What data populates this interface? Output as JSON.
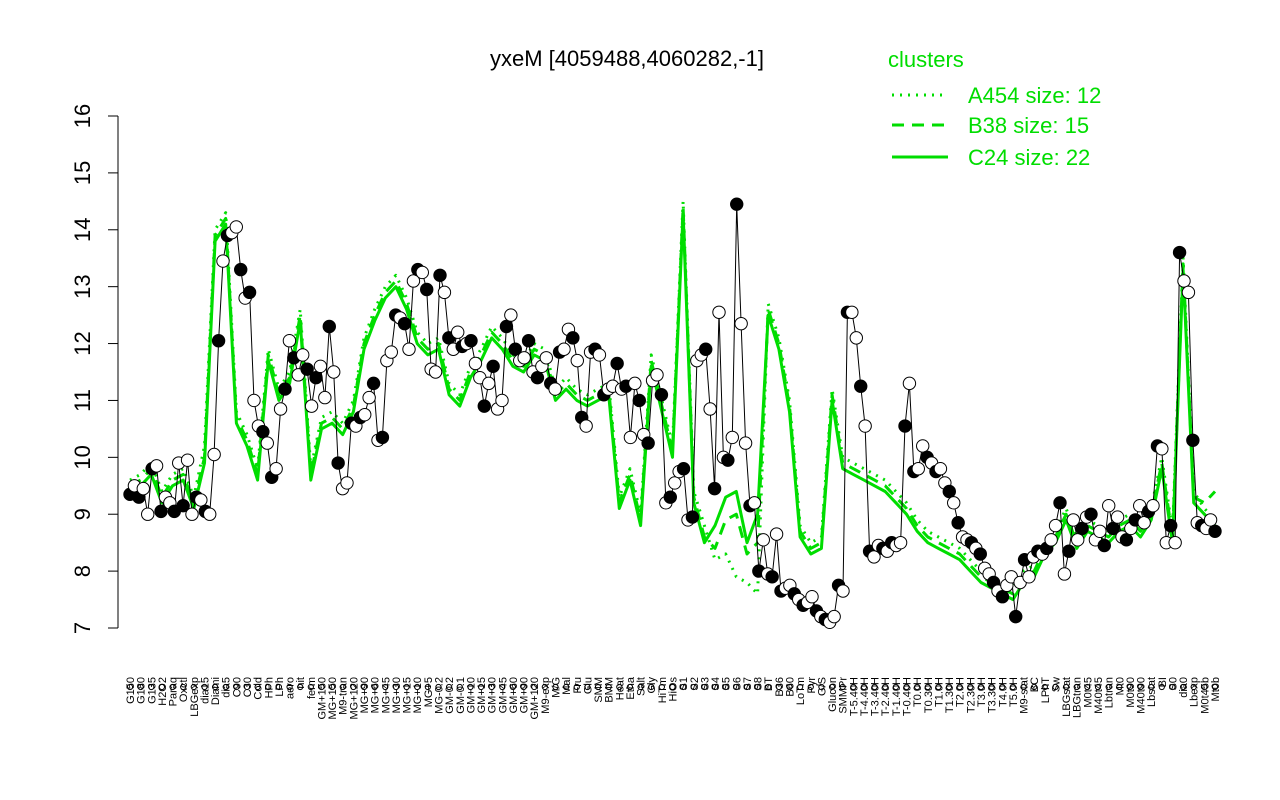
{
  "chart_data": {
    "type": "line",
    "title": "yxeM [4059488,4060282,-1]",
    "xlabel": "",
    "ylabel": "",
    "ylim": [
      7,
      16
    ],
    "yticks": [
      7,
      8,
      9,
      10,
      11,
      12,
      13,
      14,
      15,
      16
    ],
    "x_tick_labels": [
      "G150",
      "G180",
      "G135",
      "H2O2",
      "Paraq",
      "Oxctl",
      "LBGexp",
      "dia15",
      "Diami",
      "dia5",
      "C90",
      "C30",
      "Cold",
      "HPh",
      "LPh",
      "aero",
      "nit",
      "ferm",
      "GM+150",
      "MG+150",
      "M9-tran",
      "MG+120",
      "MG+90",
      "MG+60",
      "MG+45",
      "MG+30",
      "MG+15",
      "MG+10",
      "MG+5",
      "MG-0.2",
      "GM-0.2",
      "GM-0.1",
      "GM+10",
      "GM+15",
      "GM+30",
      "GM+45",
      "GM+60",
      "GM+90",
      "GM+120",
      "M9-exp",
      "M/G",
      "Mal",
      "Fru",
      "Glu",
      "SMM",
      "BMM",
      "Heat",
      "Etha",
      "Salt",
      "Gly",
      "HiTm",
      "HiOs",
      "S1",
      "S2",
      "S3",
      "S4",
      "S5",
      "S6",
      "S7",
      "S8",
      "BT",
      "B36",
      "B60",
      "LoTm",
      "Pyr",
      "G/S",
      "Glucon",
      "SMMPr",
      "T-5.40H",
      "T-4.40H",
      "T-3.40H",
      "T-2.40H",
      "T-1.40H",
      "T-0.40H",
      "T0.0H",
      "T0.30H",
      "T1.0H",
      "T1.30H",
      "T2.0H",
      "T2.30H",
      "T3.0H",
      "T3.30H",
      "T4.0H",
      "T5.0H",
      "M9-stat",
      "BC",
      "LPhT",
      "Sw",
      "LBGstat",
      "LBGtran",
      "M0t45",
      "M40t45",
      "Lbtran",
      "Mt0",
      "M0t90",
      "M40t90",
      "Lbstat",
      "BI",
      "S0",
      "dia0",
      "Lbexp",
      "M0t45b",
      "Mt0b"
    ],
    "series": [
      {
        "name": "A454 size: 12",
        "style": "dotted",
        "color": "#00dd00",
        "values": [
          9.6,
          9.7,
          9.9,
          9.4,
          9.7,
          9.8,
          9.3,
          10.2,
          14.0,
          14.3,
          10.8,
          10.4,
          9.8,
          11.9,
          11.2,
          11.5,
          12.6,
          9.8,
          10.7,
          10.8,
          10.6,
          11.0,
          12.1,
          12.6,
          13.0,
          13.2,
          12.8,
          12.2,
          12.0,
          12.1,
          11.3,
          11.1,
          11.6,
          11.9,
          12.3,
          12.1,
          11.8,
          11.7,
          12.0,
          11.9,
          11.2,
          11.4,
          11.2,
          11.1,
          11.2,
          11.3,
          9.3,
          9.8,
          9.0,
          11.8,
          11.0,
          10.2,
          14.5,
          9.4,
          8.8,
          8.2,
          8.3,
          7.9,
          7.8,
          7.6,
          12.7,
          12.1,
          11.0,
          8.8,
          8.5,
          8.6,
          11.2,
          10.0,
          9.9,
          9.8,
          9.7,
          9.6,
          9.4,
          9.2,
          8.9,
          8.7,
          8.6,
          8.5,
          8.4,
          8.2,
          8.0,
          7.9,
          7.8,
          7.7,
          8.0,
          8.1,
          8.5,
          8.7,
          9.1,
          8.6,
          8.9,
          8.8,
          8.7,
          8.9,
          9.0,
          8.8,
          9.1,
          10.0,
          8.7,
          13.5,
          9.4,
          9.1,
          8.9
        ]
      },
      {
        "name": "B38 size: 15",
        "style": "dashed",
        "color": "#00dd00",
        "values": [
          9.5,
          9.6,
          9.8,
          9.3,
          9.6,
          9.7,
          9.2,
          10.0,
          13.9,
          14.2,
          10.7,
          10.3,
          9.7,
          11.8,
          11.1,
          11.4,
          12.5,
          9.7,
          10.6,
          10.7,
          10.5,
          10.9,
          12.0,
          12.5,
          12.9,
          13.1,
          12.7,
          12.1,
          11.9,
          12.0,
          11.2,
          11.0,
          11.5,
          11.8,
          12.2,
          12.0,
          11.7,
          11.6,
          11.9,
          11.8,
          11.1,
          11.3,
          11.1,
          11.0,
          11.1,
          11.2,
          9.2,
          9.7,
          8.9,
          11.7,
          10.9,
          10.1,
          14.4,
          9.3,
          8.6,
          8.4,
          8.9,
          9.0,
          8.3,
          8.5,
          12.6,
          12.0,
          10.9,
          8.7,
          8.4,
          8.5,
          11.1,
          9.9,
          9.8,
          9.7,
          9.6,
          9.5,
          9.3,
          9.1,
          8.8,
          8.6,
          8.5,
          8.4,
          8.3,
          8.1,
          7.9,
          7.8,
          7.7,
          7.6,
          7.9,
          8.0,
          8.4,
          8.6,
          9.0,
          8.5,
          8.8,
          8.7,
          8.6,
          8.8,
          8.9,
          8.7,
          9.0,
          9.9,
          8.6,
          13.4,
          9.3,
          9.2,
          9.4
        ]
      },
      {
        "name": "C24 size: 22",
        "style": "solid",
        "color": "#00dd00",
        "values": [
          9.4,
          9.5,
          9.7,
          9.2,
          9.5,
          9.6,
          9.1,
          9.9,
          13.8,
          14.1,
          10.6,
          10.2,
          9.6,
          11.7,
          11.0,
          11.3,
          12.4,
          9.6,
          10.5,
          10.6,
          10.4,
          10.8,
          11.9,
          12.4,
          12.8,
          13.0,
          12.6,
          12.0,
          11.8,
          11.9,
          11.1,
          10.9,
          11.4,
          11.7,
          12.1,
          11.9,
          11.6,
          11.5,
          11.8,
          11.7,
          11.0,
          11.2,
          11.0,
          10.9,
          11.0,
          11.1,
          9.1,
          9.6,
          8.8,
          11.6,
          10.8,
          10.0,
          14.3,
          9.2,
          8.5,
          8.8,
          9.3,
          9.4,
          8.5,
          9.0,
          12.5,
          11.9,
          10.8,
          8.6,
          8.3,
          8.4,
          11.0,
          9.8,
          9.7,
          9.6,
          9.5,
          9.4,
          9.2,
          9.0,
          8.7,
          8.5,
          8.4,
          8.3,
          8.2,
          8.0,
          7.8,
          7.7,
          7.6,
          7.5,
          7.8,
          7.9,
          8.3,
          8.5,
          8.9,
          8.4,
          8.7,
          8.6,
          8.5,
          8.7,
          8.8,
          8.6,
          8.9,
          9.8,
          8.5,
          13.3,
          9.2,
          9.0,
          8.8
        ]
      }
    ],
    "points": [
      9.35,
      9.5,
      9.3,
      9.45,
      9.0,
      9.8,
      9.85,
      9.05,
      9.3,
      9.2,
      9.05,
      9.9,
      9.15,
      9.95,
      9.0,
      9.3,
      9.25,
      9.05,
      9.0,
      10.05,
      12.05,
      13.45,
      13.9,
      13.95,
      14.05,
      13.3,
      12.8,
      12.9,
      11.0,
      10.55,
      10.45,
      10.25,
      9.65,
      9.8,
      10.85,
      11.2,
      12.05,
      11.75,
      11.45,
      11.8,
      11.55,
      10.9,
      11.4,
      11.6,
      11.05,
      12.3,
      11.5,
      9.9,
      9.45,
      9.55,
      10.6,
      10.55,
      10.7,
      10.75,
      11.05,
      11.3,
      10.3,
      10.35,
      11.7,
      11.85,
      12.5,
      12.45,
      12.35,
      11.9,
      13.1,
      13.3,
      13.25,
      12.95,
      11.55,
      11.5,
      13.2,
      12.9,
      12.1,
      11.9,
      12.2,
      11.95,
      12.0,
      12.05,
      11.65,
      11.4,
      10.9,
      11.3,
      11.6,
      10.85,
      11.0,
      12.3,
      12.5,
      11.9,
      11.7,
      11.75,
      12.05,
      11.5,
      11.4,
      11.6,
      11.75,
      11.3,
      11.2,
      11.85,
      11.9,
      12.25,
      12.1,
      11.7,
      10.7,
      10.55,
      11.85,
      11.9,
      11.8,
      11.1,
      11.2,
      11.25,
      11.65,
      11.2,
      11.25,
      10.35,
      11.3,
      11.0,
      10.4,
      10.25,
      11.35,
      11.45,
      11.1,
      9.2,
      9.3,
      9.55,
      9.75,
      9.8,
      8.9,
      8.95,
      11.7,
      11.8,
      11.9,
      10.85,
      9.45,
      12.55,
      10.0,
      9.95,
      10.35,
      14.45,
      12.35,
      10.25,
      9.15,
      9.2,
      8.0,
      8.55,
      7.95,
      7.9,
      8.65,
      7.65,
      7.7,
      7.75,
      7.6,
      7.5,
      7.4,
      7.45,
      7.55,
      7.3,
      7.2,
      7.15,
      7.1,
      7.2,
      7.75,
      7.65,
      12.55,
      12.55,
      12.1,
      11.25,
      10.55,
      8.35,
      8.25,
      8.45,
      8.4,
      8.35,
      8.5,
      8.45,
      8.5,
      10.55,
      11.3,
      9.75,
      9.8,
      10.2,
      10.0,
      9.9,
      9.75,
      9.8,
      9.55,
      9.4,
      9.2,
      8.85,
      8.6,
      8.55,
      8.5,
      8.4,
      8.3,
      8.05,
      7.95,
      7.8,
      7.65,
      7.55,
      7.75,
      7.9,
      7.2,
      7.8,
      8.2,
      7.9,
      8.25,
      8.35,
      8.3,
      8.4,
      8.55,
      8.8,
      9.2,
      7.95,
      8.35,
      8.9,
      8.55,
      8.75,
      8.95,
      9.0,
      8.55,
      8.7,
      8.45,
      9.15,
      8.75,
      8.95,
      8.6,
      8.55,
      8.75,
      8.9,
      9.15,
      8.85,
      9.05,
      9.15,
      10.2,
      10.15,
      8.5,
      8.8,
      8.5,
      13.6,
      13.1,
      12.9,
      10.3,
      8.85,
      8.8,
      8.75,
      8.9,
      8.7
    ],
    "legend": {
      "title": "clusters",
      "position": "top-right",
      "entries": [
        "A454 size: 12",
        "B38 size: 15",
        "C24 size: 22"
      ]
    },
    "grid": false
  },
  "colors": {
    "line": "#00dd00",
    "legend_text": "#00dd00",
    "point_fill_dark": "#000000",
    "point_fill_light": "#ffffff",
    "axis": "#000000"
  }
}
